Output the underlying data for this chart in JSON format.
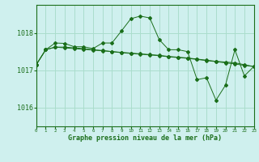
{
  "title": "Graphe pression niveau de la mer (hPa)",
  "bg_color": "#cff0ee",
  "grid_color": "#aaddcc",
  "line_color": "#1a6e1a",
  "xlim": [
    0,
    23
  ],
  "ylim": [
    1015.5,
    1018.75
  ],
  "yticks": [
    1016,
    1017,
    1018
  ],
  "xtick_labels": [
    "0",
    "1",
    "2",
    "3",
    "4",
    "5",
    "6",
    "7",
    "8",
    "9",
    "10",
    "11",
    "12",
    "13",
    "14",
    "15",
    "16",
    "17",
    "18",
    "19",
    "20",
    "21",
    "22",
    "23"
  ],
  "series1": [
    [
      0,
      1017.15
    ],
    [
      1,
      1017.55
    ],
    [
      2,
      1017.73
    ],
    [
      3,
      1017.72
    ],
    [
      4,
      1017.63
    ],
    [
      5,
      1017.63
    ],
    [
      6,
      1017.58
    ],
    [
      7,
      1017.73
    ],
    [
      8,
      1017.73
    ],
    [
      9,
      1018.05
    ],
    [
      10,
      1018.38
    ],
    [
      11,
      1018.45
    ],
    [
      12,
      1018.4
    ],
    [
      13,
      1017.82
    ],
    [
      14,
      1017.55
    ],
    [
      15,
      1017.55
    ],
    [
      16,
      1017.5
    ],
    [
      17,
      1016.75
    ],
    [
      18,
      1016.8
    ],
    [
      19,
      1016.2
    ],
    [
      20,
      1016.6
    ],
    [
      21,
      1017.55
    ],
    [
      22,
      1016.85
    ],
    [
      23,
      1017.1
    ]
  ],
  "series2": [
    [
      0,
      1017.15
    ],
    [
      1,
      1017.55
    ],
    [
      2,
      1017.62
    ],
    [
      3,
      1017.62
    ],
    [
      4,
      1017.6
    ],
    [
      5,
      1017.58
    ],
    [
      6,
      1017.55
    ],
    [
      7,
      1017.53
    ],
    [
      8,
      1017.5
    ],
    [
      9,
      1017.48
    ],
    [
      10,
      1017.46
    ],
    [
      11,
      1017.44
    ],
    [
      12,
      1017.42
    ],
    [
      13,
      1017.4
    ],
    [
      14,
      1017.37
    ],
    [
      15,
      1017.35
    ],
    [
      16,
      1017.33
    ],
    [
      17,
      1017.3
    ],
    [
      18,
      1017.27
    ],
    [
      19,
      1017.24
    ],
    [
      20,
      1017.22
    ],
    [
      21,
      1017.2
    ],
    [
      22,
      1017.15
    ],
    [
      23,
      1017.1
    ]
  ],
  "series3": [
    [
      0,
      1017.15
    ],
    [
      1,
      1017.55
    ],
    [
      2,
      1017.62
    ],
    [
      3,
      1017.6
    ],
    [
      4,
      1017.58
    ],
    [
      5,
      1017.56
    ],
    [
      6,
      1017.54
    ],
    [
      7,
      1017.52
    ],
    [
      8,
      1017.5
    ],
    [
      9,
      1017.47
    ],
    [
      10,
      1017.45
    ],
    [
      11,
      1017.43
    ],
    [
      12,
      1017.41
    ],
    [
      13,
      1017.39
    ],
    [
      14,
      1017.36
    ],
    [
      15,
      1017.34
    ],
    [
      16,
      1017.32
    ],
    [
      17,
      1017.29
    ],
    [
      18,
      1017.26
    ],
    [
      19,
      1017.23
    ],
    [
      20,
      1017.2
    ],
    [
      21,
      1017.17
    ],
    [
      22,
      1017.13
    ],
    [
      23,
      1017.1
    ]
  ]
}
